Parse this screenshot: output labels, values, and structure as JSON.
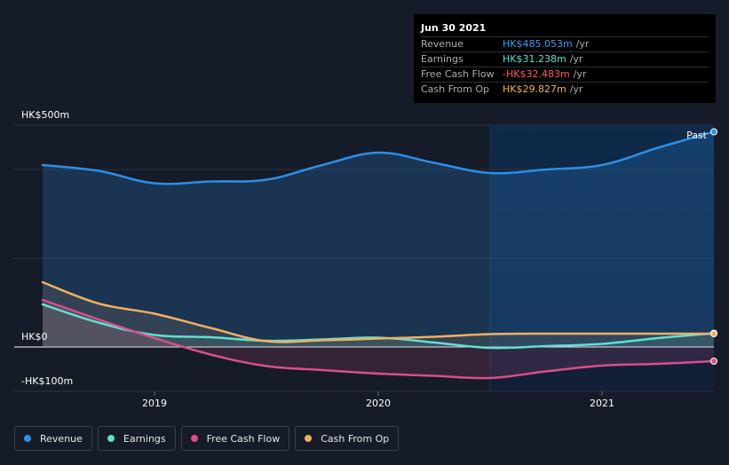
{
  "tooltip": {
    "date": "Jun 30 2021",
    "rows": [
      {
        "label": "Revenue",
        "value": "HK$485.053m",
        "unit": "/yr",
        "color": "#3b9ff0"
      },
      {
        "label": "Earnings",
        "value": "HK$31.238m",
        "unit": "/yr",
        "color": "#5fe0d0"
      },
      {
        "label": "Free Cash Flow",
        "value": "-HK$32.483m",
        "unit": "/yr",
        "color": "#ff5a5a"
      },
      {
        "label": "Cash From Op",
        "value": "HK$29.827m",
        "unit": "/yr",
        "color": "#f5b05a"
      }
    ]
  },
  "past_label": "Past",
  "legend": [
    {
      "label": "Revenue",
      "color": "#2d8fe6"
    },
    {
      "label": "Earnings",
      "color": "#5fe0d0"
    },
    {
      "label": "Free Cash Flow",
      "color": "#d94f8a"
    },
    {
      "label": "Cash From Op",
      "color": "#f0b060"
    }
  ],
  "chart_data": {
    "type": "line",
    "title": "",
    "xlabel": "",
    "ylabel": "",
    "x_ticks": [
      2019,
      2020,
      2021
    ],
    "x_tick_labels": [
      "2019",
      "2020",
      "2021"
    ],
    "xlim": [
      2018.5,
      2021.5
    ],
    "ylim": [
      -100,
      500
    ],
    "y_tick_labels": [
      {
        "value": 500,
        "label": "HK$500m"
      },
      {
        "value": 0,
        "label": "HK$0"
      },
      {
        "value": -100,
        "label": "-HK$100m"
      }
    ],
    "y_grid": [
      500,
      400,
      200,
      0,
      -100
    ],
    "highlight_from": 2020.5,
    "series": [
      {
        "name": "Revenue",
        "color": "#2d8fe6",
        "x": [
          2018.5,
          2018.75,
          2019.0,
          2019.25,
          2019.5,
          2019.75,
          2020.0,
          2020.25,
          2020.5,
          2020.75,
          2021.0,
          2021.25,
          2021.5
        ],
        "values": [
          410,
          397,
          369,
          373,
          377,
          410,
          438,
          415,
          392,
          400,
          410,
          449,
          485
        ]
      },
      {
        "name": "Earnings",
        "color": "#5fe0d0",
        "x": [
          2018.5,
          2018.75,
          2019.0,
          2019.25,
          2019.5,
          2019.75,
          2020.0,
          2020.25,
          2020.5,
          2020.75,
          2021.0,
          2021.25,
          2021.5
        ],
        "values": [
          96,
          55,
          27,
          22,
          14,
          17,
          21,
          10,
          -2,
          2,
          7,
          20,
          31
        ]
      },
      {
        "name": "Free Cash Flow",
        "color": "#d94f8a",
        "x": [
          2018.5,
          2018.75,
          2019.0,
          2019.25,
          2019.5,
          2019.75,
          2020.0,
          2020.25,
          2020.5,
          2020.75,
          2021.0,
          2021.25,
          2021.5
        ],
        "values": [
          106,
          62,
          20,
          -17,
          -43,
          -52,
          -60,
          -65,
          -70,
          -55,
          -42,
          -38,
          -32
        ]
      },
      {
        "name": "Cash From Op",
        "color": "#f0b060",
        "x": [
          2018.5,
          2018.75,
          2019.0,
          2019.25,
          2019.5,
          2019.75,
          2020.0,
          2020.25,
          2020.5,
          2020.75,
          2021.0,
          2021.25,
          2021.5
        ],
        "values": [
          146,
          98,
          75,
          43,
          13,
          15,
          19,
          23,
          29,
          30,
          30,
          30,
          30
        ]
      }
    ]
  }
}
